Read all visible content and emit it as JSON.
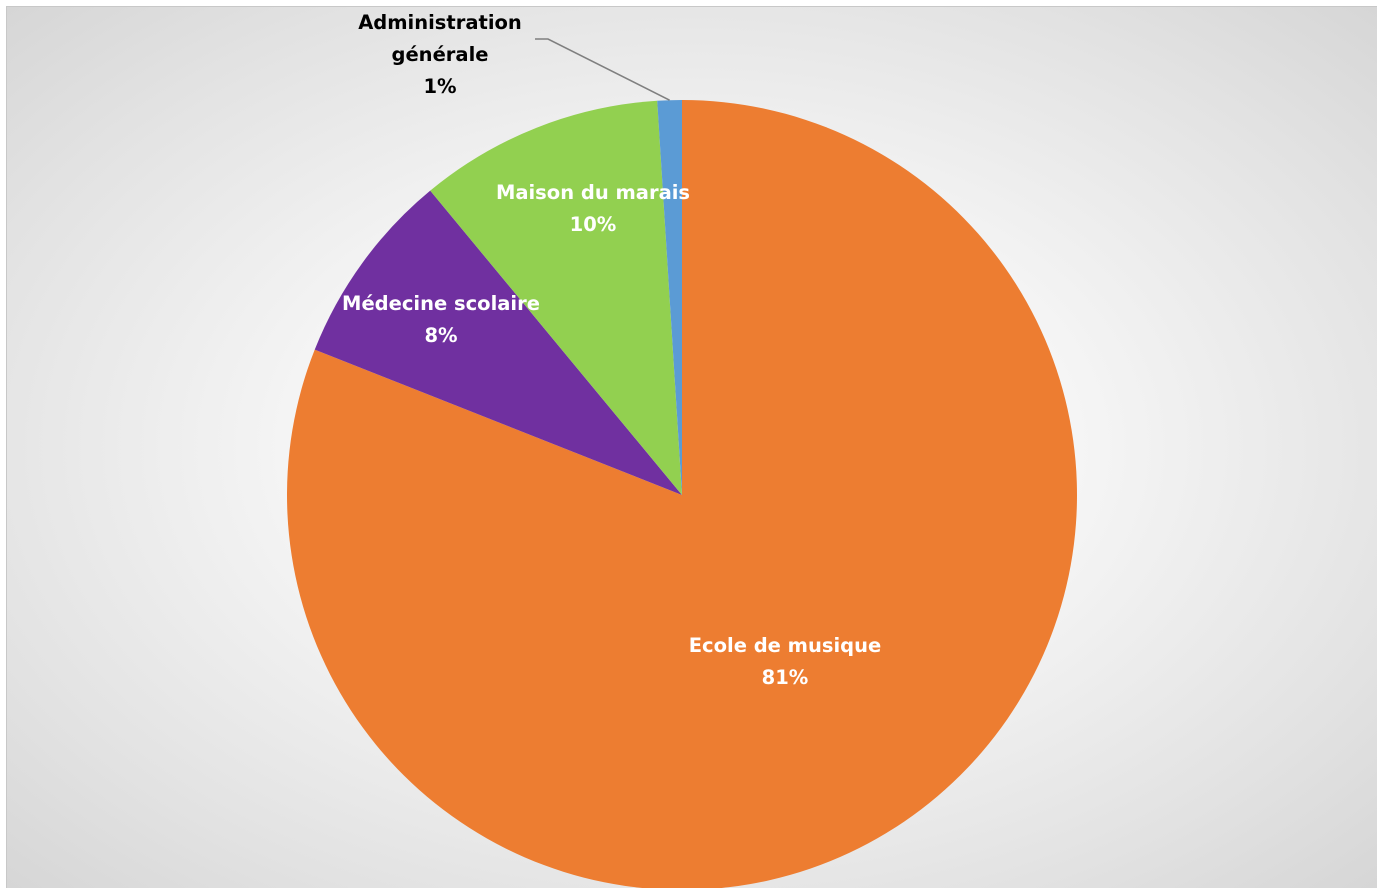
{
  "chart_data": {
    "type": "pie",
    "start_angle_deg": 0,
    "direction": "clockwise",
    "slices": [
      {
        "label": "Ecole de musique",
        "percent_label": "81%",
        "value": 81,
        "color": "#ED7D31"
      },
      {
        "label": "Médecine scolaire",
        "percent_label": "8%",
        "value": 8,
        "color": "#7030A0"
      },
      {
        "label": "Maison du marais",
        "percent_label": "10%",
        "value": 10,
        "color": "#92D050"
      },
      {
        "label": "Administration générale",
        "label_lines": [
          "Administration",
          "générale"
        ],
        "percent_label": "1%",
        "value": 1,
        "color": "#5B9BD5"
      }
    ]
  }
}
